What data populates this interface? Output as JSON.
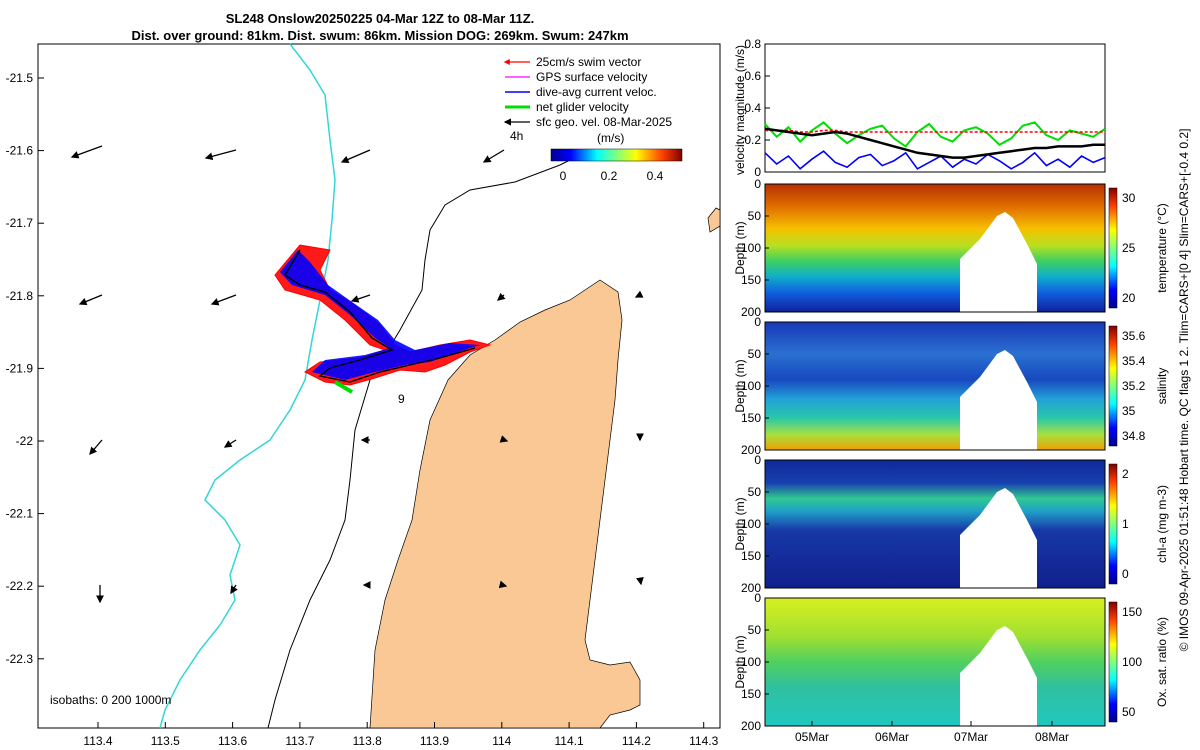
{
  "title_line1": "SL248 Onslow20250225 04-Mar 12Z to 08-Mar 11Z.",
  "title_line2": "Dist. over ground: 81km. Dist. swum: 86km. Mission DOG: 269km. Swum: 247km",
  "map": {
    "x_ticks": [
      "113.4",
      "113.5",
      "113.6",
      "113.7",
      "113.8",
      "113.9",
      "114",
      "114.1",
      "114.2",
      "114.3"
    ],
    "y_ticks": [
      "-21.5",
      "-21.6",
      "-21.7",
      "-21.8",
      "-21.9",
      "-22",
      "-22.1",
      "-22.2",
      "-22.3"
    ],
    "legend": [
      {
        "label": "25cm/s swim vector",
        "color": "#ff0000"
      },
      {
        "label": "GPS surface velocity",
        "color": "#ff00ff"
      },
      {
        "label": "dive-avg current veloc.",
        "color": "#0000ff"
      },
      {
        "label": "net glider velocity",
        "color": "#00dd00"
      },
      {
        "label": "sfc geo. vel. 08-Mar-2025",
        "color": "#000000"
      }
    ],
    "colorbar_title": "(m/s)",
    "colorbar_ticks": [
      "0",
      "0.2",
      "0.4"
    ],
    "scale_label": "4h",
    "annotation": "9",
    "isobaths_label": "isobaths: 0   200  1000m",
    "colors": {
      "land": "#f9c894",
      "isobath_0": "#33d6d6",
      "isobath_other": "#000000"
    }
  },
  "chart_data": [
    {
      "type": "line",
      "title": "velocity magnitude",
      "ylabel": "velocity magnitude (m/s)",
      "ylim": [
        0,
        0.8
      ],
      "y_ticks": [
        "0",
        "0.2",
        "0.4",
        "0.6",
        "0.8"
      ],
      "series": [
        {
          "name": "net glider velocity",
          "color": "#00dd00",
          "values": [
            0.3,
            0.22,
            0.28,
            0.19,
            0.26,
            0.31,
            0.24,
            0.18,
            0.23,
            0.27,
            0.29,
            0.21,
            0.16,
            0.25,
            0.3,
            0.22,
            0.19,
            0.26,
            0.28,
            0.24,
            0.17,
            0.21,
            0.29,
            0.31,
            0.23,
            0.2,
            0.26,
            0.24,
            0.22,
            0.27
          ]
        },
        {
          "name": "dive-avg current",
          "color": "#0000ff",
          "values": [
            0.12,
            0.05,
            0.1,
            0.02,
            0.08,
            0.13,
            0.06,
            0.03,
            0.09,
            0.11,
            0.04,
            0.07,
            0.12,
            0.02,
            0.06,
            0.1,
            0.03,
            0.08,
            0.05,
            0.11,
            0.07,
            0.02,
            0.06,
            0.12,
            0.04,
            0.08,
            0.03,
            0.1,
            0.06,
            0.09
          ]
        },
        {
          "name": "swim",
          "color": "#ff0000",
          "values": [
            0.26,
            0.26,
            0.26,
            0.25,
            0.25,
            0.26,
            0.26,
            0.25,
            0.25,
            0.25,
            0.25,
            0.25,
            0.25,
            0.25,
            0.25,
            0.25,
            0.25,
            0.25,
            0.25,
            0.25,
            0.25,
            0.25,
            0.25,
            0.25,
            0.25,
            0.25,
            0.25,
            0.25,
            0.25,
            0.25
          ]
        },
        {
          "name": "geostrophic",
          "color": "#000000",
          "values": [
            0.27,
            0.26,
            0.25,
            0.24,
            0.23,
            0.24,
            0.25,
            0.24,
            0.22,
            0.2,
            0.18,
            0.16,
            0.14,
            0.12,
            0.11,
            0.1,
            0.09,
            0.09,
            0.1,
            0.11,
            0.12,
            0.13,
            0.14,
            0.15,
            0.15,
            0.16,
            0.16,
            0.16,
            0.17,
            0.17
          ]
        }
      ]
    },
    {
      "type": "heatmap",
      "ylabel": "Depth (m)",
      "clabel": "temperature (°C)",
      "y_ticks": [
        "0",
        "50",
        "100",
        "150",
        "200"
      ],
      "c_ticks": [
        "20",
        "25",
        "30"
      ],
      "ylim": [
        200,
        0
      ]
    },
    {
      "type": "heatmap",
      "ylabel": "Depth (m)",
      "clabel": "salinity",
      "y_ticks": [
        "0",
        "50",
        "100",
        "150",
        "200"
      ],
      "c_ticks": [
        "34.8",
        "35",
        "35.2",
        "35.4",
        "35.6"
      ],
      "ylim": [
        200,
        0
      ]
    },
    {
      "type": "heatmap",
      "ylabel": "Depth (m)",
      "clabel": "chl-a (mg m-3)",
      "y_ticks": [
        "0",
        "50",
        "100",
        "150",
        "200"
      ],
      "c_ticks": [
        "0",
        "1",
        "2"
      ],
      "ylim": [
        200,
        0
      ]
    },
    {
      "type": "heatmap",
      "ylabel": "Depth (m)",
      "clabel": "Ox. sat. ratio (%)",
      "y_ticks": [
        "0",
        "50",
        "100",
        "150",
        "200"
      ],
      "c_ticks": [
        "50",
        "100",
        "150"
      ],
      "ylim": [
        200,
        0
      ]
    }
  ],
  "time_ticks": [
    "05Mar",
    "06Mar",
    "07Mar",
    "08Mar"
  ],
  "footer_text": "© IMOS 09-Apr-2025 01:51:48 Hobart time. QC flags 1  2. Tlim=CARS+[0 4] Slim=CARS+[-0.4 0.2]"
}
